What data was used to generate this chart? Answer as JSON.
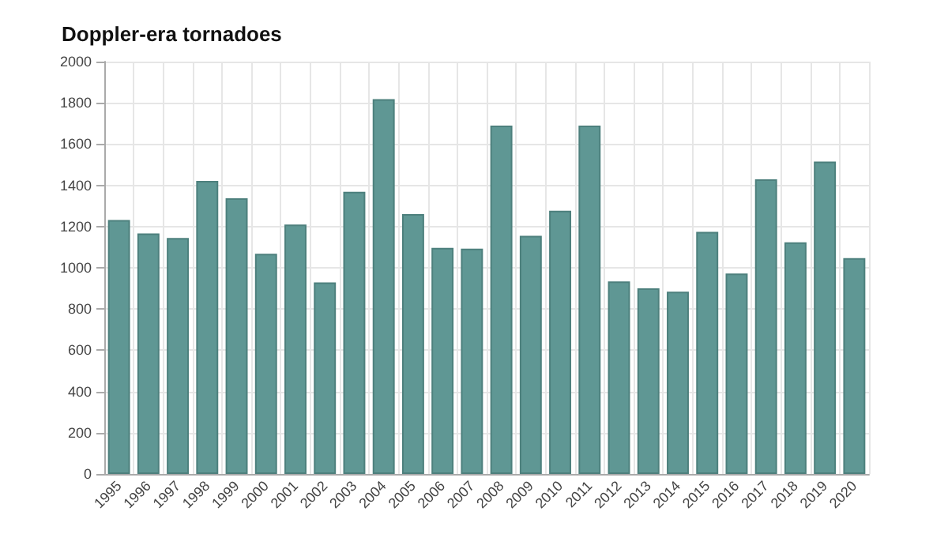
{
  "chart_data": {
    "type": "bar",
    "title": "Doppler-era tornadoes",
    "categories": [
      "1995",
      "1996",
      "1997",
      "1998",
      "1999",
      "2000",
      "2001",
      "2002",
      "2003",
      "2004",
      "2005",
      "2006",
      "2007",
      "2008",
      "2009",
      "2010",
      "2011",
      "2012",
      "2013",
      "2014",
      "2015",
      "2016",
      "2017",
      "2018",
      "2019",
      "2020"
    ],
    "values": [
      1232,
      1167,
      1145,
      1421,
      1337,
      1068,
      1210,
      929,
      1369,
      1818,
      1261,
      1097,
      1093,
      1690,
      1155,
      1277,
      1690,
      934,
      900,
      884,
      1174,
      972,
      1429,
      1124,
      1515,
      1047
    ],
    "color": "#5f9794",
    "ylim": [
      0,
      2000
    ],
    "yticks": [
      0,
      200,
      400,
      600,
      800,
      1000,
      1200,
      1400,
      1600,
      1800,
      2000
    ],
    "grid": true
  }
}
